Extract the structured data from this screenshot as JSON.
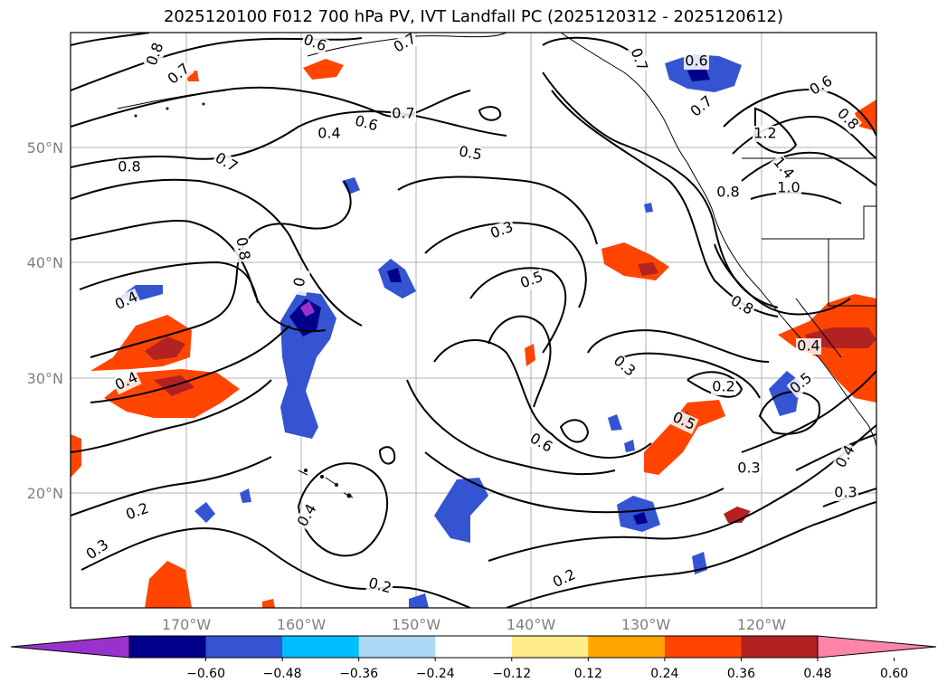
{
  "title": "2025120100 F012 700 hPa PV, IVT Landfall PC (2025120312 - 2025120612)",
  "map": {
    "lat_labels": [
      "50°N",
      "40°N",
      "30°N",
      "20°N"
    ],
    "lon_labels": [
      "170°W",
      "160°W",
      "150°W",
      "140°W",
      "130°W",
      "120°W"
    ],
    "contour_labels": [
      "0.8",
      "0.7",
      "0.6",
      "0.7",
      "0.6",
      "0.4",
      "0.7",
      "0.5",
      "0.8",
      "0.7",
      "0.8",
      "0.3",
      "0.5",
      "0.4",
      "0.4",
      "0.3",
      "0.2",
      "0.5",
      "0.6",
      "0.2",
      "0.3",
      "0.3",
      "0.4",
      "0.2",
      "0.2",
      "0.3",
      "0.4",
      "0.5",
      "0.4",
      "0.6",
      "0.7",
      "0.7",
      "0.6",
      "1.2",
      "1.4",
      "1.0",
      "0.8",
      "0.8",
      "0.8",
      "0"
    ]
  },
  "colorbar": {
    "colors": [
      "#9932cc",
      "#00008b",
      "#3454d1",
      "#00bfff",
      "#add8f7",
      "#ffffff",
      "#ffec8b",
      "#ffa500",
      "#ff4500",
      "#b22222",
      "#ff85a8"
    ],
    "ticks": [
      "−0.60",
      "−0.48",
      "−0.36",
      "−0.24",
      "−0.12",
      "0.12",
      "0.24",
      "0.36",
      "0.48",
      "0.60"
    ]
  }
}
